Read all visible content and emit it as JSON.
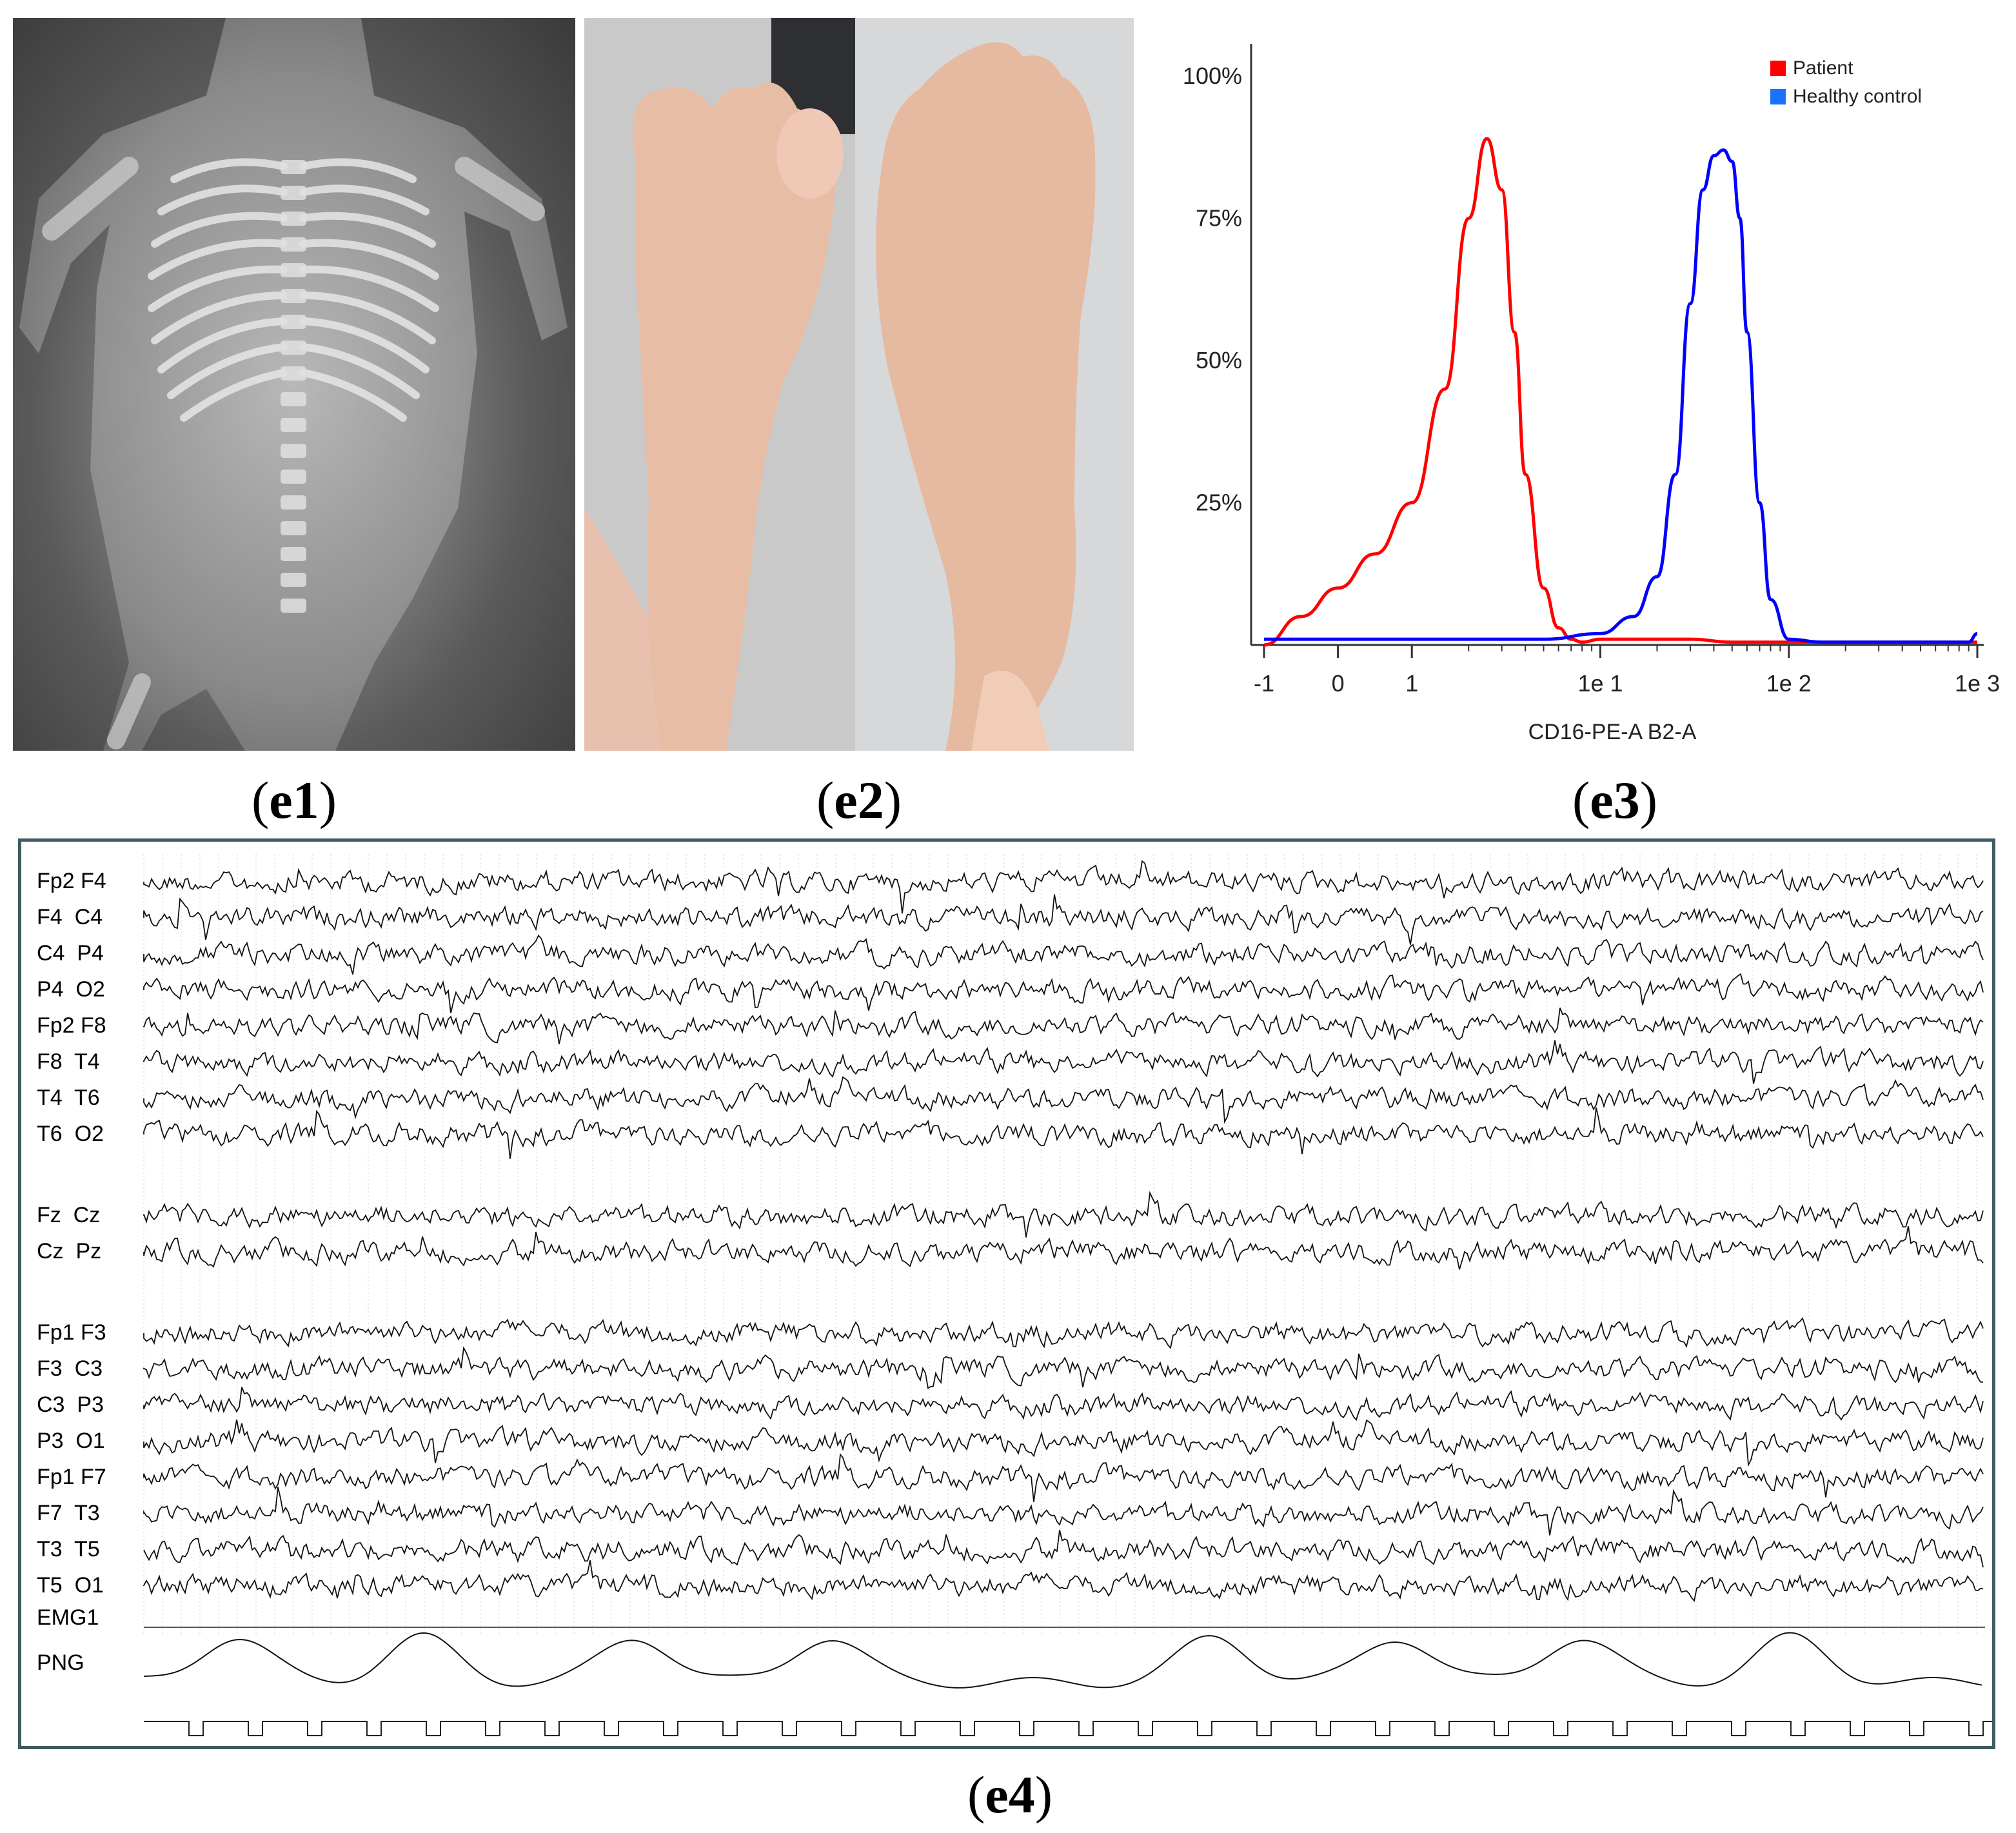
{
  "panels": {
    "e1": {
      "caption": "e1"
    },
    "e2": {
      "caption": "e2"
    },
    "e3": {
      "caption": "e3"
    },
    "e4": {
      "caption": "e4"
    }
  },
  "chart_data": {
    "type": "line",
    "title": "",
    "xlabel": "CD16-PE-A B2-A",
    "ylabel": "",
    "x_scale": "biexponential",
    "x_tick_labels": [
      "-1",
      "0",
      "1",
      "1e 1",
      "1e 2",
      "1e 3"
    ],
    "y_tick_labels": [
      "100%",
      "75%",
      "50%",
      "25%"
    ],
    "ylim": [
      0,
      100
    ],
    "legend_position": "top-right",
    "series": [
      {
        "name": "Patient",
        "color": "#ff0000",
        "x": [
          -1,
          -0.5,
          0,
          0.5,
          1,
          1.5,
          2,
          2.5,
          3,
          3.5,
          4,
          5,
          6,
          7,
          8,
          10,
          15,
          20,
          30,
          50,
          100,
          200,
          500,
          1000
        ],
        "y": [
          0,
          5,
          10,
          16,
          25,
          45,
          75,
          89,
          80,
          55,
          30,
          10,
          3,
          1,
          0.5,
          1,
          1,
          1,
          1,
          0.5,
          0.5,
          0.5,
          0.5,
          0.5
        ]
      },
      {
        "name": "Healthy control",
        "color": "#0000ff",
        "x": [
          -1,
          0,
          1,
          5,
          10,
          15,
          20,
          25,
          30,
          35,
          40,
          45,
          50,
          55,
          60,
          70,
          80,
          100,
          150,
          200,
          500,
          900,
          1000
        ],
        "y": [
          1,
          1,
          1,
          1,
          2,
          5,
          12,
          30,
          60,
          80,
          86,
          87,
          85,
          75,
          55,
          25,
          8,
          1,
          0.5,
          0.5,
          0.5,
          0.5,
          2
        ]
      }
    ]
  },
  "eeg": {
    "channels": [
      "Fp2 F4",
      "F4  C4",
      "C4  P4",
      "P4  O2",
      "Fp2 F8",
      "F8  T4",
      "T4  T6",
      "T6  O2",
      "Fz  Cz",
      "Cz  Pz",
      "Fp1 F3",
      "F3  C3",
      "C3  P3",
      "P3  O1",
      "Fp1 F7",
      "F7  T3",
      "T3  T5",
      "T5  O1",
      "EMG1",
      "PNG"
    ]
  }
}
